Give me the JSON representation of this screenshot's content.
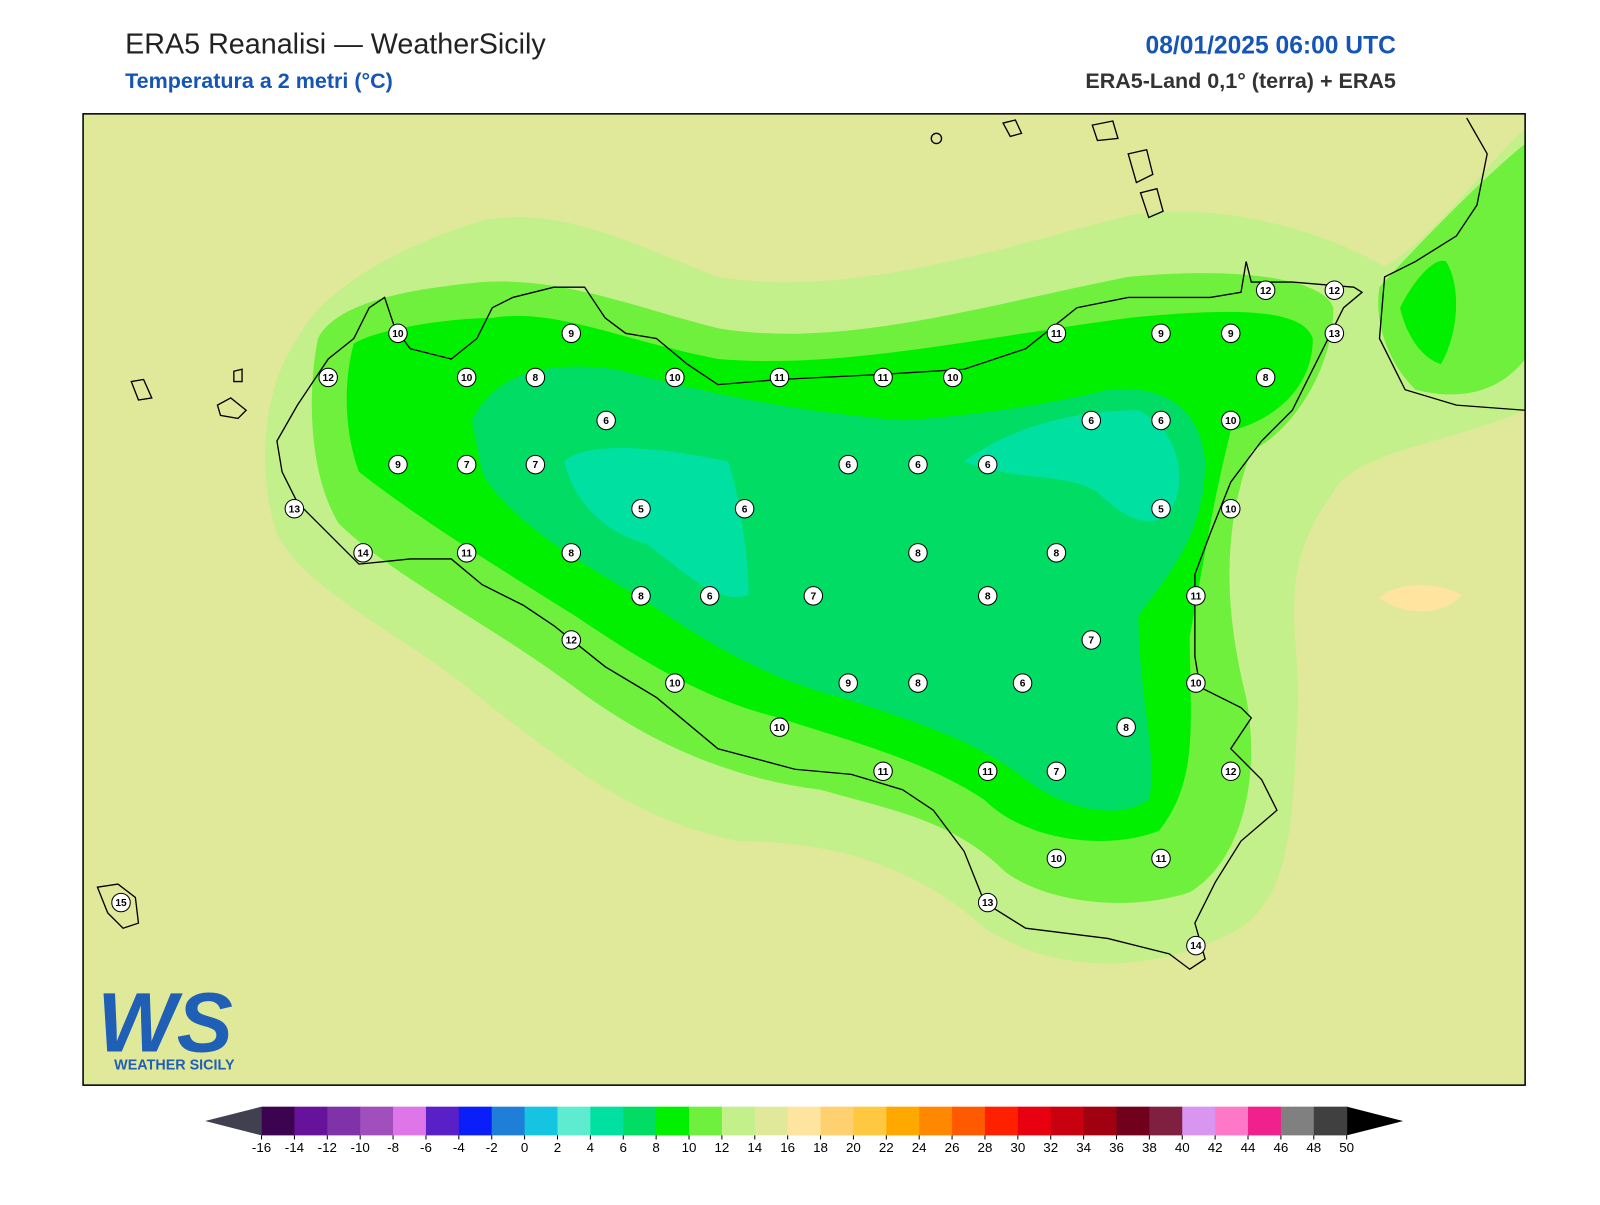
{
  "header": {
    "title": "ERA5 Reanalisi — WeatherSicily",
    "subtitle": "Temperatura a 2 metri (°C)",
    "datetime": "08/01/2025 06:00 UTC",
    "source": "ERA5-Land 0,1° (terra) + ERA5"
  },
  "map": {
    "station_values": [
      10,
      9,
      12,
      10,
      8,
      10,
      11,
      11,
      10,
      11,
      9,
      9,
      12,
      12,
      13,
      8,
      6,
      6,
      6,
      10,
      9,
      7,
      7,
      6,
      6,
      6,
      5,
      6,
      5,
      10,
      13,
      14,
      11,
      8,
      8,
      8,
      8,
      6,
      7,
      8,
      11,
      12,
      7,
      10,
      9,
      8,
      6,
      10,
      10,
      8,
      11,
      11,
      7,
      12,
      10,
      11,
      13,
      14,
      15
    ]
  },
  "logo": {
    "mark": "WS",
    "text": "WEATHER SICILY"
  },
  "colorbar": {
    "ticks": [
      -16,
      -14,
      -12,
      -10,
      -8,
      -6,
      -4,
      -2,
      0,
      2,
      4,
      6,
      8,
      10,
      12,
      14,
      16,
      18,
      20,
      22,
      24,
      26,
      28,
      30,
      32,
      34,
      36,
      38,
      40,
      42,
      44,
      46,
      48,
      50
    ],
    "colors": [
      "#3c0350",
      "#66129a",
      "#8033a8",
      "#a04fbd",
      "#de76ea",
      "#5a20c8",
      "#0a1efa",
      "#1f7fd8",
      "#14c4e0",
      "#5eecd0",
      "#00e0a0",
      "#00dc64",
      "#00f000",
      "#6ef03c",
      "#c4f08c",
      "#e0e89a",
      "#ffe4a0",
      "#ffd070",
      "#ffc840",
      "#ffa800",
      "#ff8800",
      "#ff5a00",
      "#ff2000",
      "#e80010",
      "#c80010",
      "#a00010",
      "#70001c",
      "#802040",
      "#d896f0",
      "#ff78c8",
      "#f0208c",
      "#808080",
      "#404040"
    ],
    "under_color": "#404050",
    "over_color": "#000000"
  }
}
